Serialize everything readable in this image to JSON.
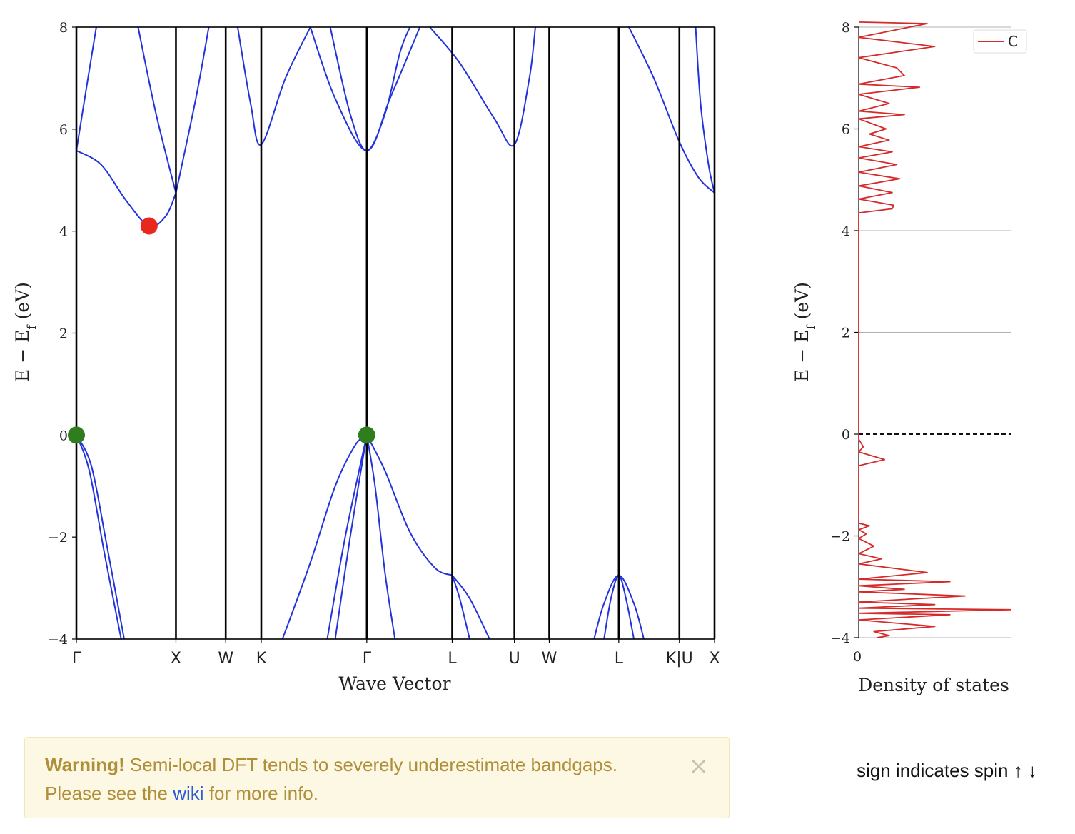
{
  "chart_data": [
    {
      "type": "line",
      "subtype": "band-structure",
      "xlabel": "Wave Vector",
      "ylabel": "E − E",
      "ylabel_sub": "f",
      "ylabel_unit": " (eV)",
      "ylim": [
        -4,
        8
      ],
      "yticks": [
        -4,
        -2,
        0,
        2,
        4,
        6,
        8
      ],
      "ytick_labels": [
        "−4",
        "−2",
        "0",
        "2",
        "4",
        "6",
        "8"
      ],
      "high_symmetry_points": [
        {
          "label": "Γ",
          "k": 0.0
        },
        {
          "label": "X",
          "k": 1.0
        },
        {
          "label": "W",
          "k": 1.5
        },
        {
          "label": "K",
          "k": 1.857
        },
        {
          "label": "Γ",
          "k": 2.917
        },
        {
          "label": "L",
          "k": 3.775
        },
        {
          "label": "U",
          "k": 4.4
        },
        {
          "label": "W",
          "k": 4.75
        },
        {
          "label": "L",
          "k": 5.448
        },
        {
          "label": "K|U",
          "k": 6.057
        },
        {
          "label": "X",
          "k": 6.41
        }
      ],
      "line_color": "#2233dd",
      "vbm": [
        {
          "k": 0.0,
          "energy": 0.0
        },
        {
          "k": 2.917,
          "energy": 0.0
        }
      ],
      "vbm_color": "#2f7d1d",
      "cbm": [
        {
          "k": 0.73,
          "energy": 4.1
        }
      ],
      "cbm_color": "#e8281e",
      "bands": [
        {
          "name": "c1",
          "points": [
            [
              0,
              5.58
            ],
            [
              0.25,
              5.3
            ],
            [
              0.5,
              4.6
            ],
            [
              0.73,
              4.1
            ],
            [
              0.9,
              4.3
            ],
            [
              1.0,
              4.75
            ]
          ]
        },
        {
          "name": "c2",
          "points": [
            [
              0,
              5.58
            ],
            [
              0.1,
              6.8
            ],
            [
              0.2,
              8.0
            ]
          ]
        },
        {
          "name": "c3",
          "points": [
            [
              0.62,
              8.0
            ],
            [
              0.8,
              6.3
            ],
            [
              1.0,
              4.75
            ]
          ]
        },
        {
          "name": "c4",
          "points": [
            [
              1.0,
              4.75
            ],
            [
              1.2,
              6.6
            ],
            [
              1.33,
              8.0
            ]
          ]
        },
        {
          "name": "c5",
          "points": [
            [
              1.62,
              8.0
            ],
            [
              1.75,
              6.5
            ],
            [
              1.857,
              5.7
            ],
            [
              2.1,
              7.0
            ],
            [
              2.35,
              8.0
            ]
          ]
        },
        {
          "name": "c6",
          "points": [
            [
              2.55,
              8.0
            ],
            [
              2.75,
              6.3
            ],
            [
              2.917,
              5.58
            ],
            [
              3.1,
              6.3
            ],
            [
              3.25,
              7.5
            ],
            [
              3.35,
              8.0
            ]
          ]
        },
        {
          "name": "c7",
          "points": [
            [
              2.35,
              8.0
            ],
            [
              2.6,
              6.6
            ],
            [
              2.917,
              5.58
            ],
            [
              3.15,
              6.6
            ],
            [
              3.45,
              8.0
            ]
          ]
        },
        {
          "name": "c8",
          "points": [
            [
              3.55,
              8.0
            ],
            [
              3.85,
              7.3
            ],
            [
              4.2,
              6.2
            ],
            [
              4.4,
              5.7
            ],
            [
              4.55,
              7.0
            ],
            [
              4.61,
              8.0
            ]
          ]
        },
        {
          "name": "c9",
          "points": [
            [
              5.55,
              8.0
            ],
            [
              5.8,
              7.0
            ],
            [
              6.057,
              5.75
            ],
            [
              6.25,
              5.05
            ],
            [
              6.41,
              4.75
            ]
          ]
        },
        {
          "name": "c10",
          "points": [
            [
              6.22,
              8.0
            ],
            [
              6.27,
              6.5
            ],
            [
              6.35,
              5.3
            ],
            [
              6.41,
              4.75
            ]
          ]
        },
        {
          "name": "v1",
          "points": [
            [
              0,
              0.0
            ],
            [
              0.15,
              -0.6
            ],
            [
              0.3,
              -2.1
            ],
            [
              0.48,
              -4.0
            ]
          ]
        },
        {
          "name": "v2",
          "points": [
            [
              0,
              0.0
            ],
            [
              0.13,
              -0.7
            ],
            [
              0.28,
              -2.3
            ],
            [
              0.45,
              -4.0
            ]
          ]
        },
        {
          "name": "v3",
          "points": [
            [
              2.07,
              -4.0
            ],
            [
              2.35,
              -2.5
            ],
            [
              2.6,
              -1.0
            ],
            [
              2.8,
              -0.2
            ],
            [
              2.917,
              0.0
            ]
          ]
        },
        {
          "name": "v4",
          "points": [
            [
              2.52,
              -4.0
            ],
            [
              2.7,
              -2.0
            ],
            [
              2.917,
              0.0
            ]
          ]
        },
        {
          "name": "v5",
          "points": [
            [
              2.6,
              -4.0
            ],
            [
              2.75,
              -2.0
            ],
            [
              2.917,
              0.0
            ]
          ]
        },
        {
          "name": "v6",
          "points": [
            [
              2.917,
              0.0
            ],
            [
              3.1,
              -0.7
            ],
            [
              3.35,
              -1.9
            ],
            [
              3.6,
              -2.6
            ],
            [
              3.775,
              -2.75
            ]
          ]
        },
        {
          "name": "v7",
          "points": [
            [
              2.917,
              0.0
            ],
            [
              3.0,
              -1.0
            ],
            [
              3.1,
              -2.7
            ],
            [
              3.2,
              -4.0
            ]
          ]
        },
        {
          "name": "v8",
          "points": [
            [
              3.775,
              -2.75
            ],
            [
              3.95,
              -3.2
            ],
            [
              4.15,
              -4.0
            ]
          ]
        },
        {
          "name": "v9",
          "points": [
            [
              3.775,
              -2.75
            ],
            [
              3.85,
              -3.2
            ],
            [
              3.95,
              -4.0
            ]
          ]
        },
        {
          "name": "v10",
          "points": [
            [
              5.2,
              -4.0
            ],
            [
              5.3,
              -3.3
            ],
            [
              5.448,
              -2.75
            ],
            [
              5.6,
              -3.3
            ],
            [
              5.7,
              -4.0
            ]
          ]
        },
        {
          "name": "v11",
          "points": [
            [
              5.3,
              -4.0
            ],
            [
              5.37,
              -3.2
            ],
            [
              5.448,
              -2.75
            ],
            [
              5.52,
              -3.2
            ],
            [
              5.6,
              -4.0
            ]
          ]
        }
      ]
    },
    {
      "type": "line",
      "subtype": "density-of-states",
      "xlabel": "Density of states",
      "ylabel": "E − E",
      "ylabel_sub": "f",
      "ylabel_unit": " (eV)",
      "ylim": [
        -4,
        8
      ],
      "yticks": [
        -4,
        -2,
        0,
        2,
        4,
        6,
        8
      ],
      "ytick_labels": [
        "−4",
        "−2",
        "0",
        "2",
        "4",
        "6",
        "8"
      ],
      "xtick_labels": [
        "0"
      ],
      "xlim": [
        0,
        1
      ],
      "grid": true,
      "fermi_line": true,
      "legend_position": "top-right",
      "series": [
        {
          "name": "C",
          "color": "#d62a2a",
          "points": [
            [
              0.0,
              8.1
            ],
            [
              0.45,
              8.07
            ],
            [
              0.0,
              7.8
            ],
            [
              0.5,
              7.62
            ],
            [
              0.0,
              7.4
            ],
            [
              0.25,
              7.2
            ],
            [
              0.3,
              7.05
            ],
            [
              0.0,
              6.88
            ],
            [
              0.4,
              6.82
            ],
            [
              0.0,
              6.68
            ],
            [
              0.2,
              6.5
            ],
            [
              0.0,
              6.35
            ],
            [
              0.3,
              6.28
            ],
            [
              0.0,
              6.2
            ],
            [
              0.18,
              6.0
            ],
            [
              0.07,
              5.9
            ],
            [
              0.2,
              5.78
            ],
            [
              0.0,
              5.65
            ],
            [
              0.22,
              5.55
            ],
            [
              0.0,
              5.43
            ],
            [
              0.25,
              5.3
            ],
            [
              0.0,
              5.15
            ],
            [
              0.27,
              5.02
            ],
            [
              0.0,
              4.88
            ],
            [
              0.22,
              4.75
            ],
            [
              0.0,
              4.62
            ],
            [
              0.23,
              4.5
            ],
            [
              0.22,
              4.43
            ],
            [
              0.0,
              4.35
            ],
            [
              0.0,
              0.0
            ],
            [
              0.0,
              -0.1
            ],
            [
              0.03,
              -0.25
            ],
            [
              0.0,
              -0.35
            ],
            [
              0.17,
              -0.5
            ],
            [
              0.0,
              -0.62
            ],
            [
              0.0,
              -1.75
            ],
            [
              0.07,
              -1.8
            ],
            [
              0.0,
              -1.88
            ],
            [
              0.05,
              -1.96
            ],
            [
              0.0,
              -2.05
            ],
            [
              0.1,
              -2.2
            ],
            [
              0.0,
              -2.35
            ],
            [
              0.15,
              -2.45
            ],
            [
              0.0,
              -2.55
            ],
            [
              0.45,
              -2.72
            ],
            [
              0.0,
              -2.85
            ],
            [
              0.6,
              -2.9
            ],
            [
              0.0,
              -2.98
            ],
            [
              0.3,
              -3.05
            ],
            [
              0.0,
              -3.1
            ],
            [
              0.7,
              -3.18
            ],
            [
              0.0,
              -3.3
            ],
            [
              0.5,
              -3.35
            ],
            [
              0.0,
              -3.42
            ],
            [
              1.0,
              -3.45
            ],
            [
              0.0,
              -3.52
            ],
            [
              0.6,
              -3.55
            ],
            [
              0.0,
              -3.65
            ],
            [
              0.5,
              -3.78
            ],
            [
              0.1,
              -3.88
            ],
            [
              0.2,
              -3.96
            ],
            [
              0.12,
              -4.0
            ]
          ]
        }
      ]
    }
  ],
  "warning": {
    "strong": "Warning!",
    "text_before": " Semi-local DFT tends to severely underestimate bandgaps. Please see the ",
    "link": "wiki",
    "text_after": " for more info.",
    "close": "×"
  },
  "spin_note": "sign indicates spin ↑ ↓"
}
